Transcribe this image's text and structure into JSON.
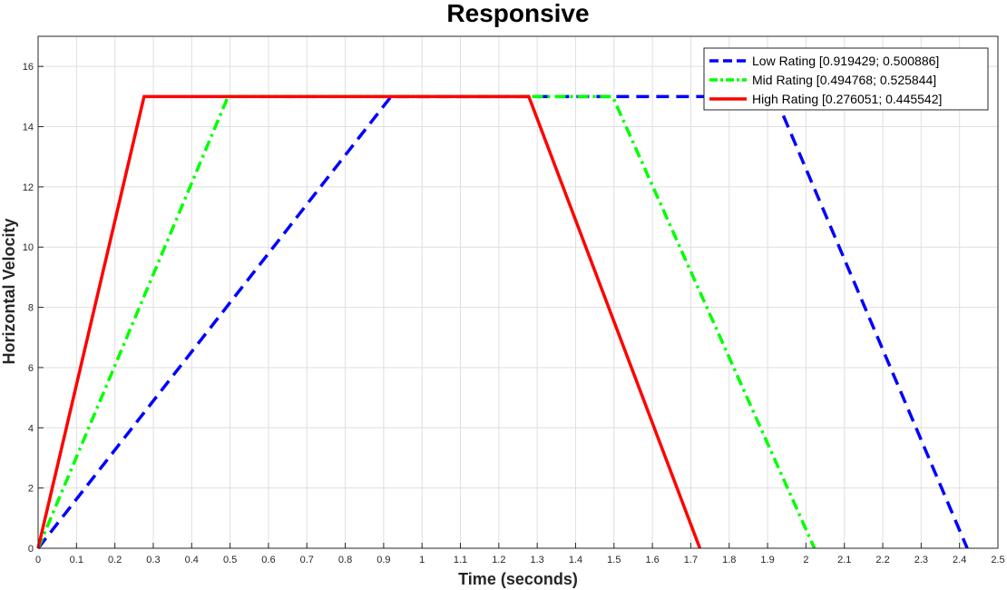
{
  "chart_data": {
    "type": "line",
    "title": "Responsive",
    "xlabel": "Time (seconds)",
    "ylabel": "Horizontal Velocity",
    "xlim": [
      0,
      2.5
    ],
    "ylim": [
      0,
      17
    ],
    "x_ticks": [
      0,
      0.1,
      0.2,
      0.3,
      0.4,
      0.5,
      0.6,
      0.7,
      0.8,
      0.9,
      1,
      1.1,
      1.2,
      1.3,
      1.4,
      1.5,
      1.6,
      1.7,
      1.8,
      1.9,
      2,
      2.1,
      2.2,
      2.3,
      2.4,
      2.5
    ],
    "x_tick_labels": [
      "0",
      "0.1",
      "0.2",
      "0.3",
      "0.4",
      "0.5",
      "0.6",
      "0.7",
      "0.8",
      "0.9",
      "1",
      "1.1",
      "1.2",
      "1.3",
      "1.4",
      "1.5",
      "1.6",
      "1.7",
      "1.8",
      "1.9",
      "2",
      "2.1",
      "2.2",
      "2.3",
      "2.4",
      "2.5"
    ],
    "y_ticks": [
      0,
      2,
      4,
      6,
      8,
      10,
      12,
      14,
      16
    ],
    "y_tick_labels": [
      "0",
      "2",
      "4",
      "6",
      "8",
      "10",
      "12",
      "14",
      "16"
    ],
    "grid": true,
    "legend_position": "top-right",
    "series": [
      {
        "name": "Low Rating [0.919429; 0.500886]",
        "color": "#0000ff",
        "line_style": "dashed",
        "x": [
          0,
          0.919429,
          1.92,
          2.42
        ],
        "y": [
          0,
          15,
          15,
          0
        ]
      },
      {
        "name": "Mid Rating [0.494768; 0.525844]",
        "color": "#00ff00",
        "line_style": "dash-dot",
        "x": [
          0,
          0.494768,
          1.4964,
          2.022
        ],
        "y": [
          0,
          15,
          15,
          0
        ]
      },
      {
        "name": "High Rating [0.276051; 0.445542]",
        "color": "#ff0000",
        "line_style": "solid",
        "x": [
          0,
          0.276051,
          1.2781,
          1.7236
        ],
        "y": [
          0,
          15,
          15,
          0
        ]
      }
    ]
  }
}
